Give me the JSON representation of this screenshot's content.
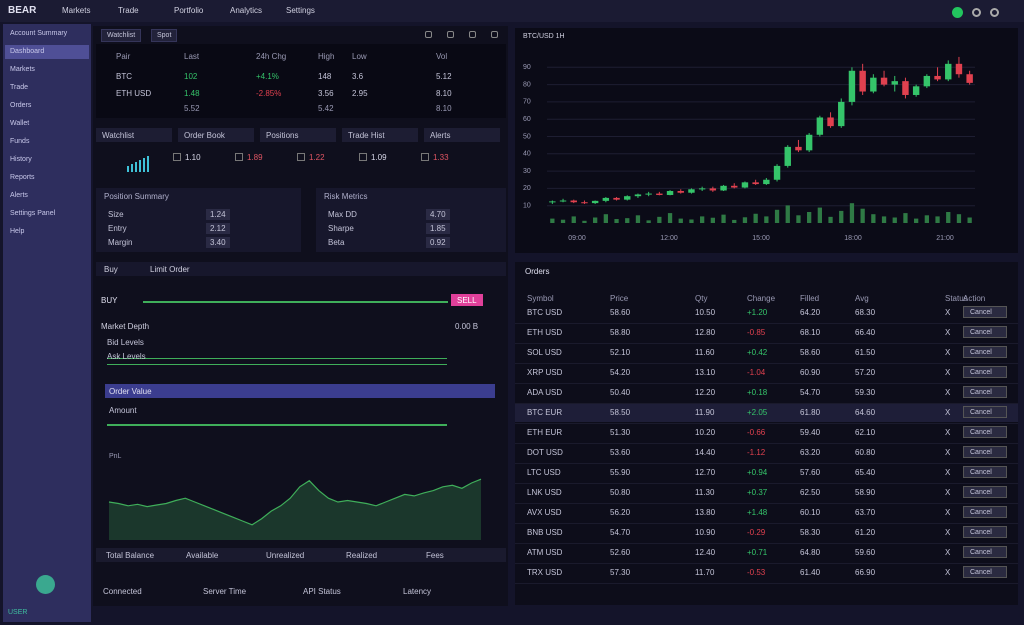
{
  "topbar": {
    "logo": "BEAR",
    "nav": [
      "Markets",
      "Trade",
      "Portfolio",
      "Analytics",
      "Settings"
    ]
  },
  "sidebar": {
    "items": [
      "Account Summary",
      "Dashboard",
      "Markets",
      "Trade",
      "Orders",
      "Wallet",
      "Funds",
      "History",
      "Reports",
      "Alerts",
      "Settings Panel",
      "Help"
    ],
    "active": 1,
    "user": "USER"
  },
  "ticker": {
    "tabs": [
      "Watchlist",
      "Spot"
    ],
    "columns": [
      "Pair",
      "Last",
      "24h Chg",
      "High",
      "Low",
      "Vol"
    ],
    "rows": [
      [
        "BTC",
        "102",
        "+4.1%",
        "148",
        "3.6",
        "5.12"
      ],
      [
        "ETH USD",
        "1.48",
        "-2.85%",
        "3.56",
        "2.95",
        "8.10"
      ]
    ],
    "totals": [
      "5.52",
      "5.42",
      "8.10"
    ]
  },
  "tabs": [
    "Watchlist",
    "Order Book",
    "Positions",
    "Trade Hist",
    "Alerts"
  ],
  "quotes": [
    "1.10",
    "1.89",
    "1.22",
    "1.09",
    "1.33"
  ],
  "quote_colors": [
    "#d8d8e8",
    "#e05563",
    "#e05563",
    "#d8d8e8",
    "#e05563"
  ],
  "panels": [
    {
      "title": "Position Summary",
      "rows": [
        [
          "Size",
          "1.24"
        ],
        [
          "Entry",
          "2.12"
        ],
        [
          "Margin",
          "3.40"
        ]
      ]
    },
    {
      "title": "Risk Metrics",
      "rows": [
        [
          "Max DD",
          "4.70"
        ],
        [
          "Sharpe",
          "1.85"
        ],
        [
          "Beta",
          "0.92"
        ]
      ]
    }
  ],
  "order": {
    "tabs": [
      "Buy",
      "Limit Order"
    ],
    "side": "BUY",
    "sell": "SELL",
    "depth_title": "Market Depth",
    "depth_value": "0.00 B",
    "rows": [
      "Bid Levels",
      "Ask Levels"
    ],
    "highlight": "Order Value",
    "amount": "Amount"
  },
  "pnl": {
    "title": "PnL",
    "ylim": [
      0,
      100
    ],
    "color": "#3fae5a",
    "values": [
      50,
      48,
      45,
      47,
      44,
      46,
      48,
      52,
      55,
      50,
      45,
      40,
      35,
      30,
      25,
      20,
      28,
      38,
      45,
      55,
      70,
      78,
      65,
      55,
      50,
      52,
      50,
      48,
      45,
      50,
      55,
      60,
      58,
      62,
      65,
      70,
      72,
      68,
      75,
      80
    ]
  },
  "footer": [
    "Total Balance",
    "Available",
    "Unrealized",
    "Realized",
    "Fees"
  ],
  "bottom": [
    "Connected",
    "Server Time",
    "API Status",
    "Latency"
  ],
  "price_chart": {
    "type": "candlestick",
    "title": "BTC/USD 1H",
    "ylim": [
      0,
      100
    ],
    "yticks": [
      10,
      20,
      30,
      40,
      50,
      60,
      70,
      80,
      90
    ],
    "volume_lim": [
      0,
      100
    ],
    "up_color": "#35c46a",
    "down_color": "#e0414f",
    "time_labels": [
      "09:00",
      "12:00",
      "15:00",
      "18:00",
      "21:00"
    ],
    "ohlc": [
      [
        12,
        13,
        11,
        12.5
      ],
      [
        12.5,
        14,
        12,
        13
      ],
      [
        13,
        13.5,
        11.5,
        12
      ],
      [
        12,
        13,
        11,
        11.5
      ],
      [
        11.5,
        13,
        11,
        12.8
      ],
      [
        12.8,
        15,
        12,
        14.5
      ],
      [
        14.5,
        15,
        13,
        13.5
      ],
      [
        13.5,
        16,
        13,
        15.5
      ],
      [
        15.5,
        17,
        14.5,
        16.5
      ],
      [
        16.5,
        18,
        15.5,
        17
      ],
      [
        17,
        18,
        16,
        16.2
      ],
      [
        16.2,
        19,
        16,
        18.5
      ],
      [
        18.5,
        19.5,
        17,
        17.5
      ],
      [
        17.5,
        20,
        17,
        19.5
      ],
      [
        19.5,
        21,
        18.5,
        20
      ],
      [
        20,
        21,
        18,
        18.8
      ],
      [
        18.8,
        22,
        18.5,
        21.5
      ],
      [
        21.5,
        23,
        20,
        20.5
      ],
      [
        20.5,
        24,
        20,
        23.5
      ],
      [
        23.5,
        25,
        22,
        22.5
      ],
      [
        22.5,
        26,
        22,
        25
      ],
      [
        25,
        34,
        24,
        33
      ],
      [
        33,
        45,
        32,
        44
      ],
      [
        44,
        48,
        41,
        42
      ],
      [
        42,
        52,
        41,
        51
      ],
      [
        51,
        62,
        50,
        61
      ],
      [
        61,
        64,
        55,
        56
      ],
      [
        56,
        72,
        55,
        70
      ],
      [
        70,
        90,
        68,
        88
      ],
      [
        88,
        92,
        74,
        76
      ],
      [
        76,
        86,
        75,
        84
      ],
      [
        84,
        88,
        79,
        80
      ],
      [
        80,
        85,
        76,
        82
      ],
      [
        82,
        84,
        72,
        74
      ],
      [
        74,
        80,
        73,
        79
      ],
      [
        79,
        86,
        78,
        85
      ],
      [
        85,
        90,
        82,
        83
      ],
      [
        83,
        94,
        82,
        92
      ],
      [
        92,
        96,
        84,
        86
      ],
      [
        86,
        88,
        80,
        81
      ]
    ],
    "volume": [
      20,
      15,
      30,
      10,
      25,
      40,
      18,
      22,
      35,
      12,
      28,
      45,
      20,
      16,
      30,
      24,
      38,
      14,
      26,
      42,
      30,
      60,
      80,
      35,
      50,
      70,
      28,
      55,
      90,
      65,
      40,
      30,
      25,
      45,
      20,
      35,
      30,
      50,
      40,
      25
    ]
  },
  "orders": {
    "title": "Orders",
    "columns": [
      "Symbol",
      "Price",
      "Qty",
      "Change",
      "Filled",
      "Avg",
      "Status",
      "Action"
    ],
    "action_label": "Cancel",
    "highlight_row": 5,
    "rows": [
      [
        "BTC USD",
        "58.60",
        "10.50",
        "+1.20",
        "64.20",
        "68.30",
        "X"
      ],
      [
        "ETH USD",
        "58.80",
        "12.80",
        "-0.85",
        "68.10",
        "66.40",
        "X"
      ],
      [
        "SOL USD",
        "52.10",
        "11.60",
        "+0.42",
        "58.60",
        "61.50",
        "X"
      ],
      [
        "XRP USD",
        "54.20",
        "13.10",
        "-1.04",
        "60.90",
        "57.20",
        "X"
      ],
      [
        "ADA USD",
        "50.40",
        "12.20",
        "+0.18",
        "54.70",
        "59.30",
        "X"
      ],
      [
        "BTC EUR",
        "58.50",
        "11.90",
        "+2.05",
        "61.80",
        "64.60",
        "X"
      ],
      [
        "ETH EUR",
        "51.30",
        "10.20",
        "-0.66",
        "59.40",
        "62.10",
        "X"
      ],
      [
        "DOT USD",
        "53.60",
        "14.40",
        "-1.12",
        "63.20",
        "60.80",
        "X"
      ],
      [
        "LTC USD",
        "55.90",
        "12.70",
        "+0.94",
        "57.60",
        "65.40",
        "X"
      ],
      [
        "LNK USD",
        "50.80",
        "11.30",
        "+0.37",
        "62.50",
        "58.90",
        "X"
      ],
      [
        "AVX USD",
        "56.20",
        "13.80",
        "+1.48",
        "60.10",
        "63.70",
        "X"
      ],
      [
        "BNB USD",
        "54.70",
        "10.90",
        "-0.29",
        "58.30",
        "61.20",
        "X"
      ],
      [
        "ATM USD",
        "52.60",
        "12.40",
        "+0.71",
        "64.80",
        "59.60",
        "X"
      ],
      [
        "TRX USD",
        "57.30",
        "11.70",
        "-0.53",
        "61.40",
        "66.90",
        "X"
      ]
    ]
  }
}
